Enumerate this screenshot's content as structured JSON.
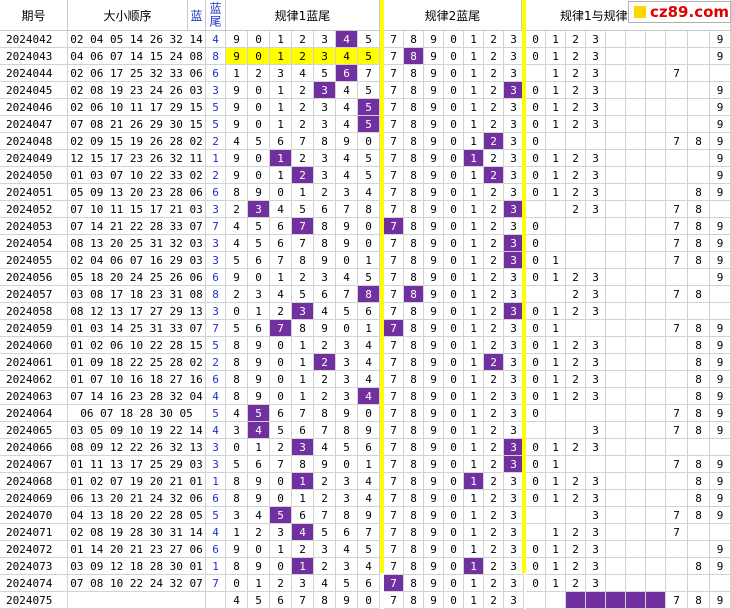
{
  "headers": {
    "period": "期号",
    "draw_order": "大小顺序",
    "blue": "蓝",
    "blue_tail": "蓝尾",
    "rule1": "规律1蓝尾",
    "rule2": "规律2蓝尾",
    "rule_cross": "规律1与规律"
  },
  "logo": {
    "text": "cz89.com"
  },
  "rows": [
    {
      "period": "2024042",
      "nums": "02 04 05 14 26 32 14",
      "tail": "4",
      "r1": [
        "9",
        "0",
        "1",
        "2",
        "3",
        "4",
        "5"
      ],
      "r1hi": [
        5
      ],
      "r2": [
        "7",
        "8",
        "9",
        "0",
        "1",
        "2",
        "3"
      ],
      "r2hi": [],
      "r3": [
        "0",
        "1",
        "2",
        "3",
        "",
        "",
        "",
        "",
        "",
        "9"
      ]
    },
    {
      "period": "2024043",
      "nums": "04 06 07 14 15 24 08",
      "tail": "8",
      "r1": [
        "9",
        "0",
        "1",
        "2",
        "3",
        "4",
        "5"
      ],
      "r1hi": [],
      "yellow": true,
      "r2": [
        "7",
        "8",
        "9",
        "0",
        "1",
        "2",
        "3"
      ],
      "r2hi": [
        1
      ],
      "r3": [
        "0",
        "1",
        "2",
        "3",
        "",
        "",
        "",
        "",
        "",
        "9"
      ]
    },
    {
      "period": "2024044",
      "nums": "02 06 17 25 32 33 06",
      "tail": "6",
      "r1": [
        "1",
        "2",
        "3",
        "4",
        "5",
        "6",
        "7"
      ],
      "r1hi": [
        5
      ],
      "r2": [
        "7",
        "8",
        "9",
        "0",
        "1",
        "2",
        "3"
      ],
      "r2hi": [],
      "r3": [
        "",
        "1",
        "2",
        "3",
        "",
        "",
        "",
        "7",
        "",
        ""
      ]
    },
    {
      "period": "2024045",
      "nums": "02 08 19 23 24 26 03",
      "tail": "3",
      "r1": [
        "9",
        "0",
        "1",
        "2",
        "3",
        "4",
        "5"
      ],
      "r1hi": [
        4
      ],
      "r2": [
        "7",
        "8",
        "9",
        "0",
        "1",
        "2",
        "3"
      ],
      "r2hi": [
        6
      ],
      "r3": [
        "0",
        "1",
        "2",
        "3",
        "",
        "",
        "",
        "",
        "",
        "9"
      ]
    },
    {
      "period": "2024046",
      "nums": "02 06 10 11 17 29 15",
      "tail": "5",
      "r1": [
        "9",
        "0",
        "1",
        "2",
        "3",
        "4",
        "5"
      ],
      "r1hi": [
        6
      ],
      "r2": [
        "7",
        "8",
        "9",
        "0",
        "1",
        "2",
        "3"
      ],
      "r2hi": [],
      "r3": [
        "0",
        "1",
        "2",
        "3",
        "",
        "",
        "",
        "",
        "",
        "9"
      ]
    },
    {
      "period": "2024047",
      "nums": "07 08 21 26 29 30 15",
      "tail": "5",
      "r1": [
        "9",
        "0",
        "1",
        "2",
        "3",
        "4",
        "5"
      ],
      "r1hi": [
        6
      ],
      "r2": [
        "7",
        "8",
        "9",
        "0",
        "1",
        "2",
        "3"
      ],
      "r2hi": [],
      "r3": [
        "0",
        "1",
        "2",
        "3",
        "",
        "",
        "",
        "",
        "",
        "9"
      ]
    },
    {
      "period": "2024048",
      "nums": "02 09 15 19 26 28 02",
      "tail": "2",
      "r1": [
        "4",
        "5",
        "6",
        "7",
        "8",
        "9",
        "0"
      ],
      "r1hi": [],
      "r2": [
        "7",
        "8",
        "9",
        "0",
        "1",
        "2",
        "3"
      ],
      "r2hi": [
        5
      ],
      "r3": [
        "0",
        "",
        "",
        "",
        "",
        "",
        "",
        "7",
        "8",
        "9"
      ]
    },
    {
      "period": "2024049",
      "nums": "12 15 17 23 26 32 11",
      "tail": "1",
      "r1": [
        "9",
        "0",
        "1",
        "2",
        "3",
        "4",
        "5"
      ],
      "r1hi": [
        2
      ],
      "r2": [
        "7",
        "8",
        "9",
        "0",
        "1",
        "2",
        "3"
      ],
      "r2hi": [
        4
      ],
      "r3": [
        "0",
        "1",
        "2",
        "3",
        "",
        "",
        "",
        "",
        "",
        "9"
      ]
    },
    {
      "period": "2024050",
      "nums": "01 03 07 10 22 33 02",
      "tail": "2",
      "r1": [
        "9",
        "0",
        "1",
        "2",
        "3",
        "4",
        "5"
      ],
      "r1hi": [
        3
      ],
      "r2": [
        "7",
        "8",
        "9",
        "0",
        "1",
        "2",
        "3"
      ],
      "r2hi": [
        5
      ],
      "r3": [
        "0",
        "1",
        "2",
        "3",
        "",
        "",
        "",
        "",
        "",
        "9"
      ]
    },
    {
      "period": "2024051",
      "nums": "05 09 13 20 23 28 06",
      "tail": "6",
      "r1": [
        "8",
        "9",
        "0",
        "1",
        "2",
        "3",
        "4"
      ],
      "r1hi": [],
      "r2": [
        "7",
        "8",
        "9",
        "0",
        "1",
        "2",
        "3"
      ],
      "r2hi": [],
      "r3": [
        "0",
        "1",
        "2",
        "3",
        "",
        "",
        "",
        "",
        "8",
        "9"
      ]
    },
    {
      "period": "2024052",
      "nums": "07 10 11 15 17 21 03",
      "tail": "3",
      "r1": [
        "2",
        "3",
        "4",
        "5",
        "6",
        "7",
        "8"
      ],
      "r1hi": [
        1
      ],
      "r2": [
        "7",
        "8",
        "9",
        "0",
        "1",
        "2",
        "3"
      ],
      "r2hi": [
        6
      ],
      "r3": [
        "",
        "",
        "2",
        "3",
        "",
        "",
        "",
        "7",
        "8",
        ""
      ]
    },
    {
      "period": "2024053",
      "nums": "07 14 21 22 28 33 07",
      "tail": "7",
      "r1": [
        "4",
        "5",
        "6",
        "7",
        "8",
        "9",
        "0"
      ],
      "r1hi": [
        3
      ],
      "r2": [
        "7",
        "8",
        "9",
        "0",
        "1",
        "2",
        "3"
      ],
      "r2hi": [
        0
      ],
      "r3": [
        "0",
        "",
        "",
        "",
        "",
        "",
        "",
        "7",
        "8",
        "9"
      ]
    },
    {
      "period": "2024054",
      "nums": "08 13 20 25 31 32 03",
      "tail": "3",
      "r1": [
        "4",
        "5",
        "6",
        "7",
        "8",
        "9",
        "0"
      ],
      "r1hi": [],
      "r2": [
        "7",
        "8",
        "9",
        "0",
        "1",
        "2",
        "3"
      ],
      "r2hi": [
        6
      ],
      "r3": [
        "0",
        "",
        "",
        "",
        "",
        "",
        "",
        "7",
        "8",
        "9"
      ]
    },
    {
      "period": "2024055",
      "nums": "02 04 06 07 16 29 03",
      "tail": "3",
      "r1": [
        "5",
        "6",
        "7",
        "8",
        "9",
        "0",
        "1"
      ],
      "r1hi": [],
      "r2": [
        "7",
        "8",
        "9",
        "0",
        "1",
        "2",
        "3"
      ],
      "r2hi": [
        6
      ],
      "r3": [
        "0",
        "1",
        "",
        "",
        "",
        "",
        "",
        "7",
        "8",
        "9"
      ]
    },
    {
      "period": "2024056",
      "nums": "05 18 20 24 25 26 06",
      "tail": "6",
      "r1": [
        "9",
        "0",
        "1",
        "2",
        "3",
        "4",
        "5"
      ],
      "r1hi": [],
      "r2": [
        "7",
        "8",
        "9",
        "0",
        "1",
        "2",
        "3"
      ],
      "r2hi": [],
      "r3": [
        "0",
        "1",
        "2",
        "3",
        "",
        "",
        "",
        "",
        "",
        "9"
      ]
    },
    {
      "period": "2024057",
      "nums": "03 08 17 18 23 31 08",
      "tail": "8",
      "r1": [
        "2",
        "3",
        "4",
        "5",
        "6",
        "7",
        "8"
      ],
      "r1hi": [
        6
      ],
      "r2": [
        "7",
        "8",
        "9",
        "0",
        "1",
        "2",
        "3"
      ],
      "r2hi": [
        1
      ],
      "r3": [
        "",
        "",
        "2",
        "3",
        "",
        "",
        "",
        "7",
        "8",
        ""
      ]
    },
    {
      "period": "2024058",
      "nums": "08 12 13 17 27 29 13",
      "tail": "3",
      "r1": [
        "0",
        "1",
        "2",
        "3",
        "4",
        "5",
        "6"
      ],
      "r1hi": [
        3
      ],
      "r2": [
        "7",
        "8",
        "9",
        "0",
        "1",
        "2",
        "3"
      ],
      "r2hi": [
        6
      ],
      "r3": [
        "0",
        "1",
        "2",
        "3",
        "",
        "",
        "",
        "",
        "",
        ""
      ]
    },
    {
      "period": "2024059",
      "nums": "01 03 14 25 31 33 07",
      "tail": "7",
      "r1": [
        "5",
        "6",
        "7",
        "8",
        "9",
        "0",
        "1"
      ],
      "r1hi": [
        2
      ],
      "r2": [
        "7",
        "8",
        "9",
        "0",
        "1",
        "2",
        "3"
      ],
      "r2hi": [
        0
      ],
      "r3": [
        "0",
        "1",
        "",
        "",
        "",
        "",
        "",
        "7",
        "8",
        "9"
      ]
    },
    {
      "period": "2024060",
      "nums": "01 02 06 10 22 28 15",
      "tail": "5",
      "r1": [
        "8",
        "9",
        "0",
        "1",
        "2",
        "3",
        "4"
      ],
      "r1hi": [],
      "r2": [
        "7",
        "8",
        "9",
        "0",
        "1",
        "2",
        "3"
      ],
      "r2hi": [],
      "r3": [
        "0",
        "1",
        "2",
        "3",
        "",
        "",
        "",
        "",
        "8",
        "9"
      ]
    },
    {
      "period": "2024061",
      "nums": "01 09 18 22 25 28 02",
      "tail": "2",
      "r1": [
        "8",
        "9",
        "0",
        "1",
        "2",
        "3",
        "4"
      ],
      "r1hi": [
        4
      ],
      "r2": [
        "7",
        "8",
        "9",
        "0",
        "1",
        "2",
        "3"
      ],
      "r2hi": [
        5
      ],
      "r3": [
        "0",
        "1",
        "2",
        "3",
        "",
        "",
        "",
        "",
        "8",
        "9"
      ]
    },
    {
      "period": "2024062",
      "nums": "01 07 10 16 18 27 16",
      "tail": "6",
      "r1": [
        "8",
        "9",
        "0",
        "1",
        "2",
        "3",
        "4"
      ],
      "r1hi": [],
      "r2": [
        "7",
        "8",
        "9",
        "0",
        "1",
        "2",
        "3"
      ],
      "r2hi": [],
      "r3": [
        "0",
        "1",
        "2",
        "3",
        "",
        "",
        "",
        "",
        "8",
        "9"
      ]
    },
    {
      "period": "2024063",
      "nums": "07 14 16 23 28 32 04",
      "tail": "4",
      "r1": [
        "8",
        "9",
        "0",
        "1",
        "2",
        "3",
        "4"
      ],
      "r1hi": [
        6
      ],
      "r2": [
        "7",
        "8",
        "9",
        "0",
        "1",
        "2",
        "3"
      ],
      "r2hi": [],
      "r3": [
        "0",
        "1",
        "2",
        "3",
        "",
        "",
        "",
        "",
        "8",
        "9"
      ]
    },
    {
      "period": "2024064",
      "nums": "06 07 18 28 30 05",
      "tail": "5",
      "r1": [
        "4",
        "5",
        "6",
        "7",
        "8",
        "9",
        "0"
      ],
      "r1hi": [
        1
      ],
      "r2": [
        "7",
        "8",
        "9",
        "0",
        "1",
        "2",
        "3"
      ],
      "r2hi": [],
      "r3": [
        "0",
        "",
        "",
        "",
        "",
        "",
        "",
        "7",
        "8",
        "9"
      ]
    },
    {
      "period": "2024065",
      "nums": "03 05 09 10 19 22 14",
      "tail": "4",
      "r1": [
        "3",
        "4",
        "5",
        "6",
        "7",
        "8",
        "9"
      ],
      "r1hi": [
        1
      ],
      "r2": [
        "7",
        "8",
        "9",
        "0",
        "1",
        "2",
        "3"
      ],
      "r2hi": [],
      "r3": [
        "",
        "",
        "",
        "3",
        "",
        "",
        "",
        "7",
        "8",
        "9"
      ]
    },
    {
      "period": "2024066",
      "nums": "08 09 12 22 26 32 13",
      "tail": "3",
      "r1": [
        "0",
        "1",
        "2",
        "3",
        "4",
        "5",
        "6"
      ],
      "r1hi": [
        3
      ],
      "r2": [
        "7",
        "8",
        "9",
        "0",
        "1",
        "2",
        "3"
      ],
      "r2hi": [
        6
      ],
      "r3": [
        "0",
        "1",
        "2",
        "3",
        "",
        "",
        "",
        "",
        "",
        ""
      ]
    },
    {
      "period": "2024067",
      "nums": "01 11 13 17 25 29 03",
      "tail": "3",
      "r1": [
        "5",
        "6",
        "7",
        "8",
        "9",
        "0",
        "1"
      ],
      "r1hi": [],
      "r2": [
        "7",
        "8",
        "9",
        "0",
        "1",
        "2",
        "3"
      ],
      "r2hi": [
        6
      ],
      "r3": [
        "0",
        "1",
        "",
        "",
        "",
        "",
        "",
        "7",
        "8",
        "9"
      ]
    },
    {
      "period": "2024068",
      "nums": "01 02 07 19 20 21 01",
      "tail": "1",
      "r1": [
        "8",
        "9",
        "0",
        "1",
        "2",
        "3",
        "4"
      ],
      "r1hi": [
        3
      ],
      "r2": [
        "7",
        "8",
        "9",
        "0",
        "1",
        "2",
        "3"
      ],
      "r2hi": [
        4
      ],
      "r3": [
        "0",
        "1",
        "2",
        "3",
        "",
        "",
        "",
        "",
        "8",
        "9"
      ]
    },
    {
      "period": "2024069",
      "nums": "06 13 20 21 24 32 06",
      "tail": "6",
      "r1": [
        "8",
        "9",
        "0",
        "1",
        "2",
        "3",
        "4"
      ],
      "r1hi": [],
      "r2": [
        "7",
        "8",
        "9",
        "0",
        "1",
        "2",
        "3"
      ],
      "r2hi": [],
      "r3": [
        "0",
        "1",
        "2",
        "3",
        "",
        "",
        "",
        "",
        "8",
        "9"
      ]
    },
    {
      "period": "2024070",
      "nums": "04 13 18 20 22 28 05",
      "tail": "5",
      "r1": [
        "3",
        "4",
        "5",
        "6",
        "7",
        "8",
        "9"
      ],
      "r1hi": [
        2
      ],
      "r2": [
        "7",
        "8",
        "9",
        "0",
        "1",
        "2",
        "3"
      ],
      "r2hi": [],
      "r3": [
        "",
        "",
        "",
        "3",
        "",
        "",
        "",
        "7",
        "8",
        "9"
      ]
    },
    {
      "period": "2024071",
      "nums": "02 08 19 28 30 31 14",
      "tail": "4",
      "r1": [
        "1",
        "2",
        "3",
        "4",
        "5",
        "6",
        "7"
      ],
      "r1hi": [
        3
      ],
      "r2": [
        "7",
        "8",
        "9",
        "0",
        "1",
        "2",
        "3"
      ],
      "r2hi": [],
      "r3": [
        "",
        "1",
        "2",
        "3",
        "",
        "",
        "",
        "7",
        "",
        ""
      ]
    },
    {
      "period": "2024072",
      "nums": "01 14 20 21 23 27 06",
      "tail": "6",
      "r1": [
        "9",
        "0",
        "1",
        "2",
        "3",
        "4",
        "5"
      ],
      "r1hi": [],
      "r2": [
        "7",
        "8",
        "9",
        "0",
        "1",
        "2",
        "3"
      ],
      "r2hi": [],
      "r3": [
        "0",
        "1",
        "2",
        "3",
        "",
        "",
        "",
        "",
        "",
        "9"
      ]
    },
    {
      "period": "2024073",
      "nums": "03 09 12 18 28 30 01",
      "tail": "1",
      "r1": [
        "8",
        "9",
        "0",
        "1",
        "2",
        "3",
        "4"
      ],
      "r1hi": [
        3
      ],
      "r2": [
        "7",
        "8",
        "9",
        "0",
        "1",
        "2",
        "3"
      ],
      "r2hi": [
        4
      ],
      "r3": [
        "0",
        "1",
        "2",
        "3",
        "",
        "",
        "",
        "",
        "8",
        "9"
      ]
    },
    {
      "period": "2024074",
      "nums": "07 08 10 22 24 32 07",
      "tail": "7",
      "r1": [
        "0",
        "1",
        "2",
        "3",
        "4",
        "5",
        "6"
      ],
      "r1hi": [],
      "r2": [
        "7",
        "8",
        "9",
        "0",
        "1",
        "2",
        "3"
      ],
      "r2hi": [
        0
      ],
      "r3": [
        "0",
        "1",
        "2",
        "3",
        "",
        "",
        "",
        "",
        "",
        ""
      ]
    },
    {
      "period": "2024075",
      "nums": "",
      "tail": "",
      "r1": [
        "4",
        "5",
        "6",
        "7",
        "8",
        "9",
        "0"
      ],
      "r1hi": [],
      "r2": [
        "7",
        "8",
        "9",
        "0",
        "1",
        "2",
        "3"
      ],
      "r2hi": [],
      "r3": [
        "",
        "",
        "",
        "",
        "",
        "",
        "",
        "7",
        "8",
        "9"
      ],
      "r3hi": [
        2,
        3,
        4,
        5,
        6
      ]
    }
  ]
}
